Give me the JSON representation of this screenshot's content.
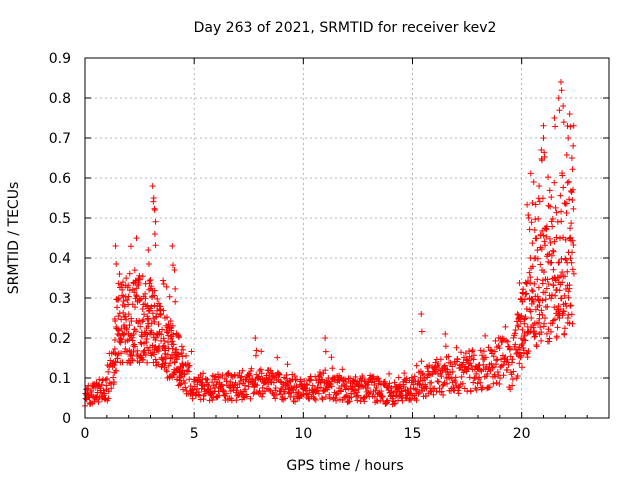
{
  "chart_data": {
    "type": "scatter",
    "title": "Day 263 of 2021, SRMTID for receiver kev2",
    "xlabel": "GPS time / hours",
    "ylabel": "SRMTID / TECUs",
    "xlim": [
      0,
      24
    ],
    "ylim": [
      0,
      0.9
    ],
    "xticks": [
      0,
      5,
      10,
      15,
      20
    ],
    "yticks": [
      0,
      0.1,
      0.2,
      0.3,
      0.4,
      0.5,
      0.6,
      0.7,
      0.8,
      0.9
    ],
    "grid": true,
    "marker": "+",
    "color": "#ff0000",
    "series": [
      {
        "name": "kev2",
        "trend": [
          [
            0.0,
            0.055
          ],
          [
            0.5,
            0.06
          ],
          [
            1.0,
            0.07
          ],
          [
            1.3,
            0.14
          ],
          [
            1.5,
            0.25
          ],
          [
            2.0,
            0.24
          ],
          [
            2.5,
            0.25
          ],
          [
            3.0,
            0.24
          ],
          [
            3.5,
            0.19
          ],
          [
            4.0,
            0.17
          ],
          [
            4.5,
            0.12
          ],
          [
            5.0,
            0.08
          ],
          [
            6.0,
            0.075
          ],
          [
            7.0,
            0.08
          ],
          [
            8.0,
            0.09
          ],
          [
            9.0,
            0.08
          ],
          [
            10.0,
            0.07
          ],
          [
            11.0,
            0.08
          ],
          [
            12.0,
            0.07
          ],
          [
            13.0,
            0.075
          ],
          [
            14.0,
            0.06
          ],
          [
            15.0,
            0.07
          ],
          [
            16.0,
            0.1
          ],
          [
            17.0,
            0.11
          ],
          [
            18.0,
            0.12
          ],
          [
            19.0,
            0.14
          ],
          [
            19.5,
            0.13
          ],
          [
            20.0,
            0.22
          ],
          [
            20.5,
            0.3
          ],
          [
            21.0,
            0.33
          ],
          [
            21.5,
            0.35
          ],
          [
            22.0,
            0.38
          ],
          [
            22.4,
            0.4
          ]
        ],
        "peaks": [
          [
            1.4,
            0.43
          ],
          [
            2.9,
            0.42
          ],
          [
            3.1,
            0.58
          ],
          [
            3.15,
            0.55
          ],
          [
            3.2,
            0.52
          ],
          [
            3.2,
            0.46
          ],
          [
            4.0,
            0.43
          ],
          [
            4.1,
            0.37
          ],
          [
            7.8,
            0.2
          ],
          [
            11.0,
            0.2
          ],
          [
            15.4,
            0.26
          ],
          [
            16.5,
            0.21
          ],
          [
            20.4,
            0.4
          ],
          [
            20.6,
            0.47
          ],
          [
            20.8,
            0.58
          ],
          [
            20.9,
            0.67
          ],
          [
            21.0,
            0.7
          ],
          [
            21.5,
            0.75
          ],
          [
            21.7,
            0.8
          ],
          [
            21.8,
            0.84
          ],
          [
            21.9,
            0.78
          ],
          [
            22.1,
            0.73
          ],
          [
            22.2,
            0.76
          ],
          [
            22.3,
            0.65
          ]
        ]
      }
    ]
  }
}
